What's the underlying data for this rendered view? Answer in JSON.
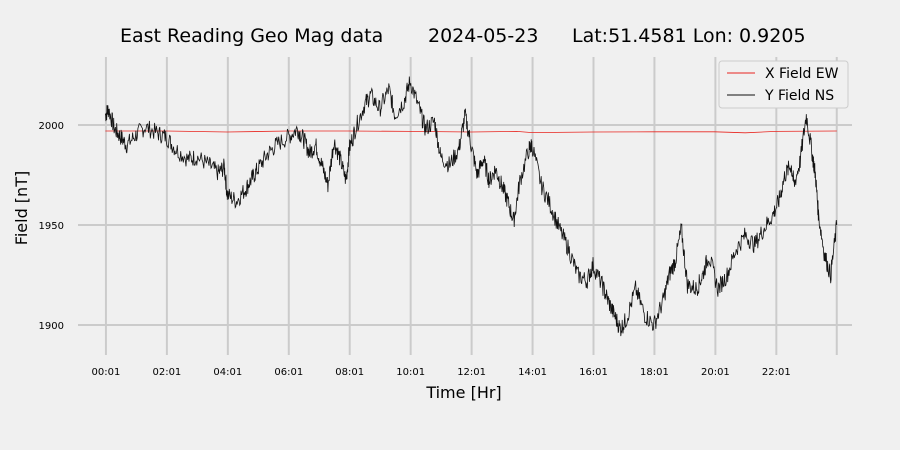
{
  "chart_data": {
    "type": "line",
    "title_parts": [
      "East Reading Geo Mag data",
      "2024-05-23",
      "Lat:51.4581  Lon: 0.9205"
    ],
    "xlabel": "Time  [Hr]",
    "ylabel": "Field  [nT]",
    "x_unit": "hours",
    "xlim": [
      -0.9,
      24.5
    ],
    "ylim": [
      1885,
      2035
    ],
    "x_ticks": [
      0.017,
      2.017,
      4.017,
      6.017,
      8.017,
      10.017,
      12.017,
      14.017,
      16.017,
      18.017,
      20.017,
      22.017,
      24.0
    ],
    "x_tick_labels": [
      "00:01",
      "02:01",
      "04:01",
      "06:01",
      "08:01",
      "10:01",
      "12:01",
      "14:01",
      "16:01",
      "18:01",
      "20:01",
      "22:01",
      ""
    ],
    "y_ticks": [
      1900,
      1950,
      2000
    ],
    "y_tick_labels": [
      "1900",
      "1950",
      "2000"
    ],
    "grid": true,
    "legend_position": "top-right",
    "series": [
      {
        "name": "X Field EW",
        "color": "#e8251f",
        "x": [
          0,
          2,
          4,
          6,
          8,
          10,
          12,
          13.5,
          14,
          16,
          18,
          20,
          21,
          22,
          24
        ],
        "y": [
          1997,
          1997,
          1996.5,
          1997,
          1997,
          1996.8,
          1996.5,
          1996.8,
          1996.2,
          1996.5,
          1996.6,
          1996.6,
          1996.1,
          1996.8,
          1997
        ]
      },
      {
        "name": "Y Field NS",
        "color": "#111111",
        "x": [
          0,
          0.1,
          0.3,
          0.5,
          0.7,
          1.0,
          1.3,
          1.7,
          2.0,
          2.3,
          2.7,
          3.0,
          3.4,
          3.7,
          3.9,
          4.0,
          4.3,
          4.6,
          4.8,
          5.0,
          5.3,
          5.6,
          6.0,
          6.3,
          6.5,
          6.7,
          6.9,
          7.1,
          7.3,
          7.5,
          7.7,
          7.9,
          8.0,
          8.2,
          8.5,
          8.7,
          9.0,
          9.3,
          9.5,
          9.8,
          10.0,
          10.3,
          10.5,
          10.8,
          11.0,
          11.3,
          11.6,
          11.8,
          12.0,
          12.2,
          12.4,
          12.6,
          12.8,
          13.0,
          13.2,
          13.4,
          13.6,
          13.9,
          14.0,
          14.3,
          14.6,
          14.9,
          15.2,
          15.5,
          15.8,
          16.0,
          16.3,
          16.5,
          16.7,
          16.9,
          17.1,
          17.4,
          17.7,
          18.0,
          18.3,
          18.5,
          18.7,
          18.9,
          19.1,
          19.4,
          19.6,
          19.8,
          20.1,
          20.4,
          20.7,
          21.0,
          21.3,
          21.6,
          21.9,
          22.1,
          22.3,
          22.5,
          22.6,
          22.8,
          23.0,
          23.2,
          23.3,
          23.4,
          23.6,
          23.8,
          24.0
        ],
        "y": [
          2005,
          2008,
          1998,
          1994,
          1990,
          1995,
          1999,
          1996,
          1994,
          1988,
          1983,
          1984,
          1980,
          1976,
          1979,
          1965,
          1962,
          1968,
          1973,
          1978,
          1985,
          1990,
          1994,
          1998,
          1993,
          1986,
          1990,
          1980,
          1970,
          1992,
          1983,
          1972,
          1988,
          1998,
          2010,
          2015,
          2008,
          2018,
          2005,
          2012,
          2022,
          2008,
          1998,
          2002,
          1984,
          1980,
          1988,
          2005,
          1990,
          1975,
          1983,
          1972,
          1978,
          1970,
          1962,
          1952,
          1972,
          1988,
          1990,
          1970,
          1960,
          1948,
          1938,
          1925,
          1922,
          1930,
          1920,
          1912,
          1905,
          1898,
          1903,
          1918,
          1905,
          1900,
          1912,
          1925,
          1932,
          1948,
          1920,
          1918,
          1925,
          1935,
          1918,
          1925,
          1938,
          1945,
          1940,
          1948,
          1955,
          1962,
          1975,
          1980,
          1970,
          1982,
          2005,
          1985,
          1975,
          1955,
          1935,
          1925,
          1950
        ]
      }
    ]
  }
}
